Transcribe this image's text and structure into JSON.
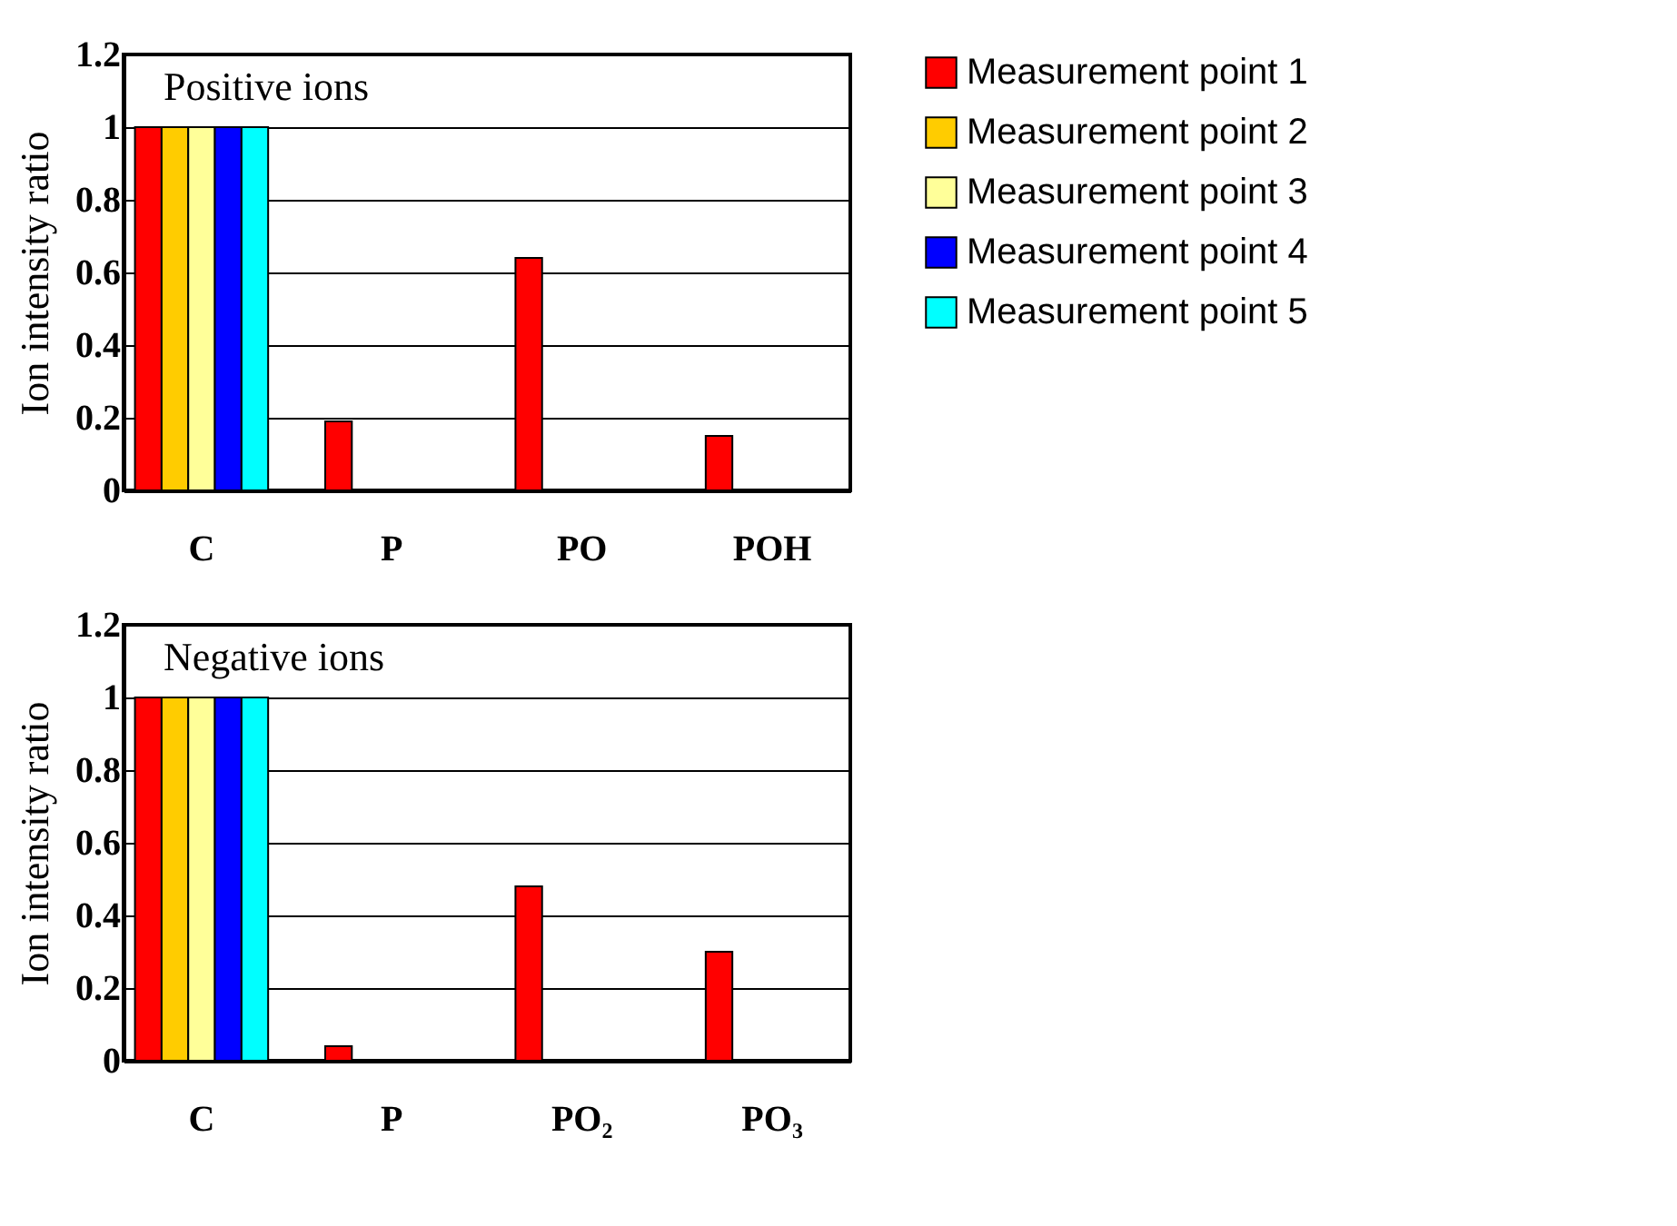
{
  "chart_data": [
    {
      "type": "bar",
      "annotations": [
        "Positive ions"
      ],
      "ylabel": "Ion intensity ratio",
      "categories": [
        "C",
        "P",
        "PO",
        "POH"
      ],
      "ylim": [
        0,
        1.2
      ],
      "yticks": [
        0,
        0.2,
        0.4,
        0.6,
        0.8,
        1,
        1.2
      ],
      "grid": "y",
      "legend": "right",
      "series": [
        {
          "name": "Measurement point 1",
          "color": "#ff0000",
          "values": [
            1,
            0.19,
            0.64,
            0.15
          ]
        },
        {
          "name": "Measurement point 2",
          "color": "#ffcc00",
          "values": [
            1,
            null,
            null,
            null
          ]
        },
        {
          "name": "Measurement point 3",
          "color": "#ffff99",
          "values": [
            1,
            null,
            null,
            null
          ]
        },
        {
          "name": "Measurement point 4",
          "color": "#0000ff",
          "values": [
            1,
            null,
            null,
            null
          ]
        },
        {
          "name": "Measurement point 5",
          "color": "#00ffff",
          "values": [
            1,
            null,
            null,
            null
          ]
        }
      ]
    },
    {
      "type": "bar",
      "annotations": [
        "Negative ions"
      ],
      "ylabel": "Ion intensity ratio",
      "categories": [
        "C",
        "P",
        "PO₂",
        "PO₃"
      ],
      "ylim": [
        0,
        1.2
      ],
      "yticks": [
        0,
        0.2,
        0.4,
        0.6,
        0.8,
        1,
        1.2
      ],
      "grid": "y",
      "series": [
        {
          "color": "#ff0000",
          "values": [
            1,
            0.04,
            0.48,
            0.3
          ]
        },
        {
          "color": "#ffcc00",
          "values": [
            1,
            null,
            null,
            null
          ]
        },
        {
          "color": "#ffff99",
          "values": [
            1,
            null,
            null,
            null
          ]
        },
        {
          "color": "#0000ff",
          "values": [
            1,
            null,
            null,
            null
          ]
        },
        {
          "color": "#00ffff",
          "values": [
            1,
            null,
            null,
            null
          ]
        }
      ]
    }
  ]
}
